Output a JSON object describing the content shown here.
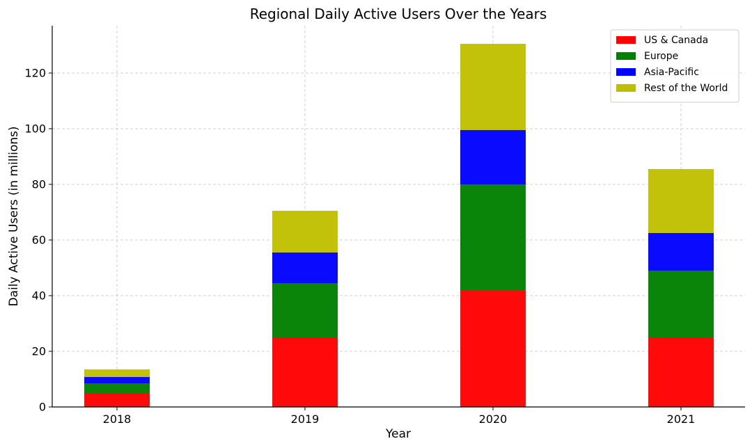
{
  "chart_data": {
    "type": "bar",
    "stacked": true,
    "title": "Regional Daily Active Users Over the Years",
    "xlabel": "Year",
    "ylabel": "Daily Active Users (in millions)",
    "categories": [
      "2018",
      "2019",
      "2020",
      "2021"
    ],
    "ylim": [
      0,
      137
    ],
    "yticks": [
      0,
      20,
      40,
      60,
      80,
      100,
      120
    ],
    "grid": true,
    "legend_position": "top-right",
    "series": [
      {
        "name": "US & Canada",
        "color": "#ff0000",
        "values": [
          5,
          25,
          42,
          25
        ]
      },
      {
        "name": "Europe",
        "color": "#008000",
        "values": [
          3.5,
          19.5,
          38,
          24
        ]
      },
      {
        "name": "Asia-Pacific",
        "color": "#0000ff",
        "values": [
          2.3,
          11,
          19.5,
          13.5
        ]
      },
      {
        "name": "Rest of the World",
        "color": "#bfbf00",
        "values": [
          2.7,
          15,
          31,
          23
        ]
      }
    ]
  }
}
